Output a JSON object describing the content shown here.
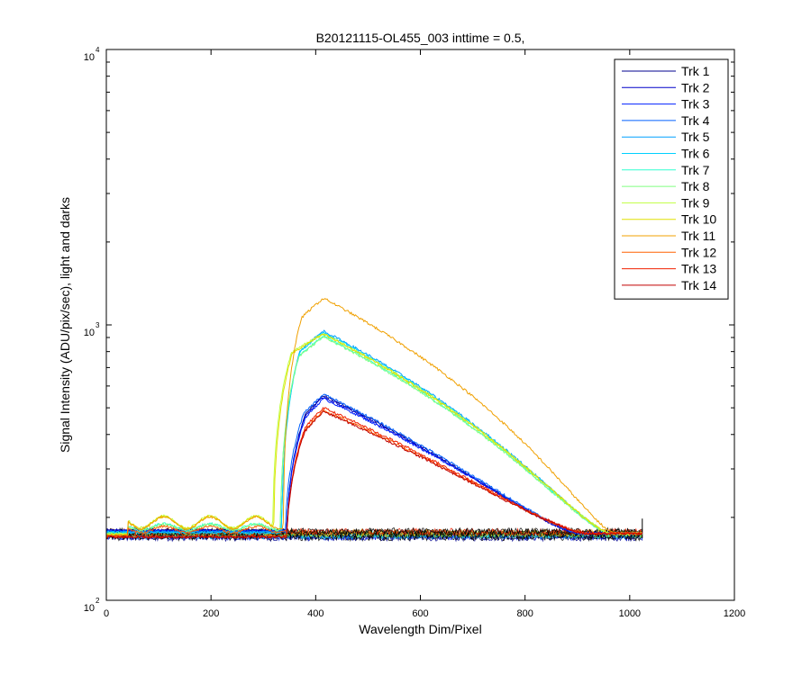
{
  "chart_data": {
    "type": "line",
    "title": "B20121115-OL455_003 inttime = 0.5,",
    "xlabel": "Wavelength Dim/Pixel",
    "ylabel": "Signal Intensity (ADU/pix/sec), light and darks",
    "xlim": [
      0,
      1200
    ],
    "ylim": [
      100,
      10000
    ],
    "yscale": "log",
    "grid": false,
    "legend_position": "top-right",
    "x_ticks": [
      0,
      200,
      400,
      600,
      800,
      1000,
      1200
    ],
    "y_tick_labels": [
      {
        "value": 100,
        "base": "10",
        "exp": "2"
      },
      {
        "value": 1000,
        "base": "10",
        "exp": "3"
      },
      {
        "value": 10000,
        "base": "10",
        "exp": "4"
      }
    ],
    "series": [
      {
        "name": "Trk 1",
        "color": "#00008F",
        "edge": 345,
        "peak": 555,
        "tail_end": 900
      },
      {
        "name": "Trk 2",
        "color": "#0000C8",
        "edge": 345,
        "peak": 548,
        "tail_end": 900
      },
      {
        "name": "Trk 3",
        "color": "#0020FF",
        "edge": 345,
        "peak": 540,
        "tail_end": 905
      },
      {
        "name": "Trk 4",
        "color": "#0060FF",
        "edge": 342,
        "peak": 560,
        "tail_end": 905
      },
      {
        "name": "Trk 5",
        "color": "#00A0FF",
        "edge": 335,
        "peak": 950,
        "tail_end": 960
      },
      {
        "name": "Trk 6",
        "color": "#00D0FF",
        "edge": 335,
        "peak": 940,
        "tail_end": 960
      },
      {
        "name": "Trk 7",
        "color": "#30FFD0",
        "edge": 333,
        "peak": 910,
        "tail_end": 960
      },
      {
        "name": "Trk 8",
        "color": "#80FF80",
        "edge": 333,
        "peak": 905,
        "tail_end": 960
      },
      {
        "name": "Trk 9",
        "color": "#C0FF40",
        "edge": 318,
        "peak": 930,
        "tail_end": 962
      },
      {
        "name": "Trk 10",
        "color": "#E0E000",
        "edge": 320,
        "peak": 925,
        "tail_end": 962
      },
      {
        "name": "Trk 11",
        "color": "#F0A000",
        "edge": 338,
        "peak": 1250,
        "tail_end": 970
      },
      {
        "name": "Trk 12",
        "color": "#FF6000",
        "edge": 345,
        "peak": 490,
        "tail_end": 915
      },
      {
        "name": "Trk 13",
        "color": "#F02000",
        "edge": 345,
        "peak": 500,
        "tail_end": 915
      },
      {
        "name": "Trk 14",
        "color": "#C00000",
        "edge": 345,
        "peak": 485,
        "tail_end": 915
      }
    ],
    "dark_level": 175
  }
}
